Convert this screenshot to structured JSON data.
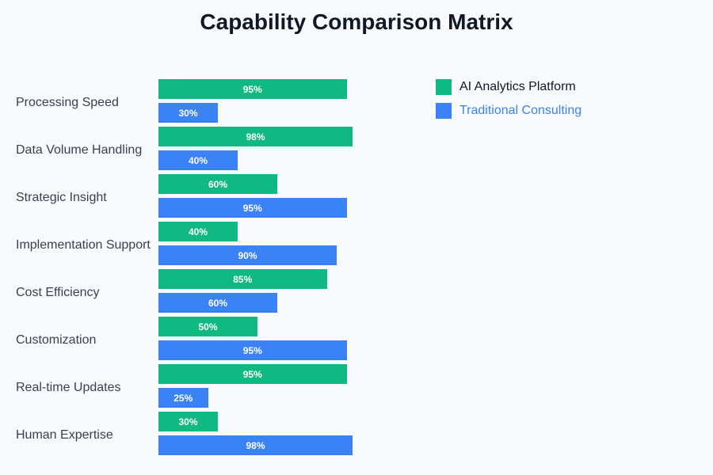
{
  "chart_data": {
    "type": "bar",
    "orientation": "horizontal",
    "title": "Capability Comparison Matrix",
    "categories": [
      "Processing Speed",
      "Data Volume Handling",
      "Strategic Insight",
      "Implementation Support",
      "Cost Efficiency",
      "Customization",
      "Real-time Updates",
      "Human Expertise"
    ],
    "series": [
      {
        "name": "AI Analytics Platform",
        "color": "#10b981",
        "values": [
          95,
          98,
          60,
          40,
          85,
          50,
          95,
          30
        ]
      },
      {
        "name": "Traditional Consulting",
        "color": "#3b82f6",
        "values": [
          30,
          40,
          95,
          90,
          60,
          95,
          25,
          98
        ]
      }
    ],
    "value_suffix": "%",
    "xlim": [
      0,
      100
    ],
    "legend_placement": "right",
    "legend_text_colors": [
      "#111827",
      "#3b82f6"
    ],
    "grid": false
  }
}
